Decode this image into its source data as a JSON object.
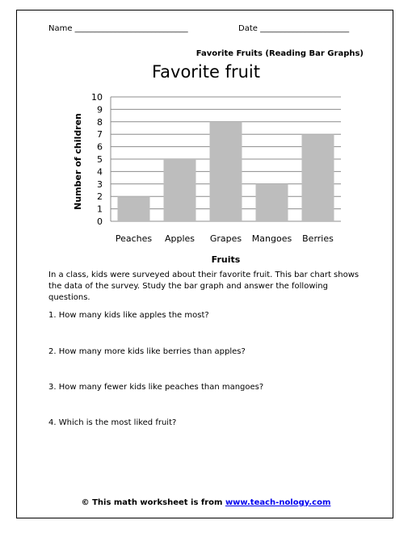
{
  "header": {
    "name_label": "Name ____________________________",
    "date_label": "Date ______________________"
  },
  "subtitle": "Favorite Fruits (Reading Bar Graphs)",
  "chart_data": {
    "type": "bar",
    "title": "Favorite fruit",
    "categories": [
      "Peaches",
      "Apples",
      "Grapes",
      "Mangoes",
      "Berries"
    ],
    "values": [
      2,
      5,
      8,
      3,
      7
    ],
    "xlabel": "Fruits",
    "ylabel": "Number of children",
    "ylim": [
      0,
      10
    ],
    "yticks": [
      "0",
      "1",
      "2",
      "3",
      "4",
      "5",
      "6",
      "7",
      "8",
      "9",
      "10"
    ],
    "grid": true,
    "bar_color": "#bdbdbd"
  },
  "intro": "In a class, kids were surveyed about their favorite fruit. This bar chart shows the data of the survey. Study the bar graph and answer the following questions.",
  "questions": [
    "1. How many kids like apples the most?",
    "2. How many more kids like berries than apples?",
    "3. How many fewer kids like peaches than mangoes?",
    "4. Which is the most liked fruit?"
  ],
  "footer": {
    "text": "© This math worksheet is from ",
    "link": "www.teach-nology.com"
  }
}
